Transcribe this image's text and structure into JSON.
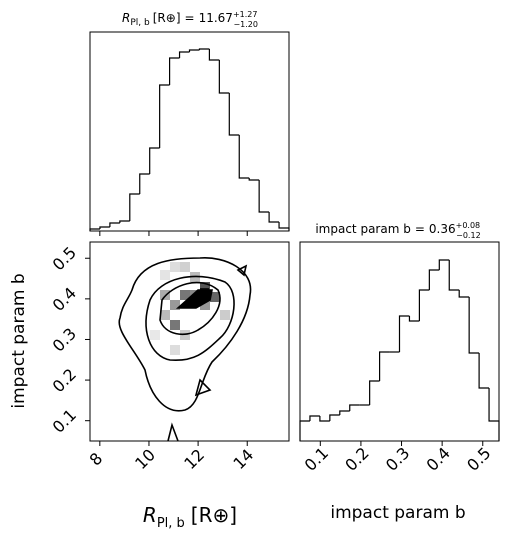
{
  "chart_data": [
    {
      "type": "histogram",
      "title": {
        "symbol": "R",
        "subscript": "Pl, b",
        "unit": "[R⊕]",
        "equals": "=",
        "value": "11.67",
        "plus": "+1.27",
        "minus": "−1.20"
      },
      "bins": [
        7.6,
        8.005,
        8.41,
        8.815,
        9.22,
        9.625,
        10.03,
        10.435,
        10.84,
        11.245,
        11.65,
        12.055,
        12.46,
        12.865,
        13.27,
        13.675,
        14.08,
        14.485,
        14.89,
        15.295,
        15.7
      ],
      "values": [
        2,
        4,
        8,
        10,
        37,
        57,
        83,
        146,
        173,
        179,
        181,
        182,
        171,
        138,
        96,
        53,
        51,
        19,
        9,
        3
      ],
      "xlim": [
        7.6,
        15.7
      ],
      "ylim": [
        0,
        199
      ],
      "color": "#000000"
    },
    {
      "type": "hist2d",
      "xlabel": {
        "symbol": "R",
        "subscript": "Pl, b",
        "unit": "[R⊕]"
      },
      "ylabel": "impact param b",
      "xlim": [
        7.6,
        15.7
      ],
      "ylim": [
        0.05,
        0.54
      ],
      "xticks": [
        8,
        10,
        12,
        14
      ],
      "yticks": [
        0.1,
        0.2,
        0.3,
        0.4,
        0.5
      ]
    },
    {
      "type": "histogram",
      "title": {
        "text": "impact param b",
        "equals": "=",
        "value": "0.36",
        "plus": "+0.08",
        "minus": "−0.12"
      },
      "xlabel": "impact param b",
      "bins": [
        0.05,
        0.0745,
        0.099,
        0.1235,
        0.148,
        0.1725,
        0.197,
        0.2215,
        0.246,
        0.2705,
        0.295,
        0.3195,
        0.344,
        0.3685,
        0.393,
        0.4175,
        0.442,
        0.4665,
        0.491,
        0.5155,
        0.54
      ],
      "values": [
        20,
        25,
        20,
        26,
        30,
        36,
        36,
        60,
        89,
        89,
        125,
        120,
        151,
        171,
        181,
        151,
        144,
        88,
        53,
        20
      ],
      "xlim": [
        0.05,
        0.54
      ],
      "ylim": [
        0,
        199
      ],
      "xticks": [
        0.1,
        0.2,
        0.3,
        0.4,
        0.5
      ],
      "color": "#000000"
    }
  ]
}
